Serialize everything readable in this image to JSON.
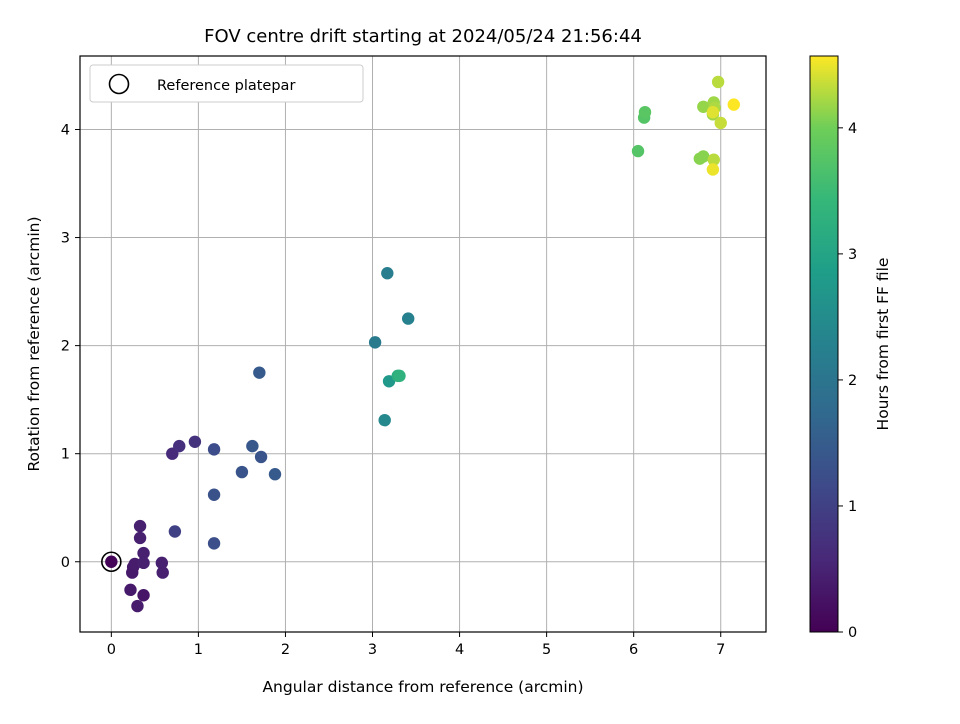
{
  "chart_data": {
    "type": "scatter",
    "title": "FOV centre drift starting at 2024/05/24 21:56:44",
    "xlabel": "Angular distance from reference (arcmin)",
    "ylabel": "Rotation from reference (arcmin)",
    "colorbar_label": "Hours from first FF file",
    "colormap": "viridis",
    "xlim": [
      -0.36,
      7.52
    ],
    "ylim": [
      -0.65,
      4.68
    ],
    "clim": [
      0,
      4.57
    ],
    "x_ticks": [
      0,
      1,
      2,
      3,
      4,
      5,
      6,
      7
    ],
    "x_tick_labels": [
      "0",
      "1",
      "2",
      "3",
      "4",
      "5",
      "6",
      "7"
    ],
    "y_ticks": [
      0,
      1,
      2,
      3,
      4
    ],
    "y_tick_labels": [
      "0",
      "1",
      "2",
      "3",
      "4"
    ],
    "colorbar_ticks": [
      0,
      1,
      2,
      3,
      4
    ],
    "colorbar_tick_labels": [
      "0",
      "1",
      "2",
      "3",
      "4"
    ],
    "grid": true,
    "legend": {
      "placement": "top-left",
      "entries": [
        "Reference platepar"
      ]
    },
    "reference": {
      "name": "Reference platepar",
      "x": 0,
      "y": 0
    },
    "points": [
      {
        "x": 0.0,
        "y": 0.0,
        "c": 0.05
      },
      {
        "x": 0.25,
        "y": -0.05,
        "c": 0.35
      },
      {
        "x": 0.24,
        "y": -0.1,
        "c": 0.35
      },
      {
        "x": 0.27,
        "y": -0.02,
        "c": 0.4
      },
      {
        "x": 0.22,
        "y": -0.26,
        "c": 0.35
      },
      {
        "x": 0.3,
        "y": -0.41,
        "c": 0.4
      },
      {
        "x": 0.37,
        "y": -0.31,
        "c": 0.3
      },
      {
        "x": 0.33,
        "y": 0.22,
        "c": 0.45
      },
      {
        "x": 0.33,
        "y": 0.33,
        "c": 0.45
      },
      {
        "x": 0.37,
        "y": 0.08,
        "c": 0.45
      },
      {
        "x": 0.37,
        "y": -0.01,
        "c": 0.45
      },
      {
        "x": 0.58,
        "y": -0.01,
        "c": 0.45
      },
      {
        "x": 0.59,
        "y": -0.1,
        "c": 0.45
      },
      {
        "x": 0.7,
        "y": 1.0,
        "c": 0.6
      },
      {
        "x": 0.78,
        "y": 1.07,
        "c": 0.7
      },
      {
        "x": 0.96,
        "y": 1.11,
        "c": 0.75
      },
      {
        "x": 0.73,
        "y": 0.28,
        "c": 1.0
      },
      {
        "x": 1.18,
        "y": 1.04,
        "c": 1.2
      },
      {
        "x": 1.18,
        "y": 0.62,
        "c": 1.3
      },
      {
        "x": 1.18,
        "y": 0.17,
        "c": 1.25
      },
      {
        "x": 1.5,
        "y": 0.83,
        "c": 1.35
      },
      {
        "x": 1.62,
        "y": 1.07,
        "c": 1.4
      },
      {
        "x": 1.72,
        "y": 0.97,
        "c": 1.35
      },
      {
        "x": 1.7,
        "y": 1.75,
        "c": 1.45
      },
      {
        "x": 1.88,
        "y": 0.81,
        "c": 1.45
      },
      {
        "x": 3.03,
        "y": 2.03,
        "c": 2.1
      },
      {
        "x": 3.17,
        "y": 2.67,
        "c": 2.2
      },
      {
        "x": 3.41,
        "y": 2.25,
        "c": 2.25
      },
      {
        "x": 3.14,
        "y": 1.31,
        "c": 2.4
      },
      {
        "x": 3.19,
        "y": 1.67,
        "c": 2.75
      },
      {
        "x": 3.29,
        "y": 1.72,
        "c": 3.2
      },
      {
        "x": 3.31,
        "y": 1.72,
        "c": 3.3
      },
      {
        "x": 6.05,
        "y": 3.8,
        "c": 3.75
      },
      {
        "x": 6.12,
        "y": 4.11,
        "c": 3.75
      },
      {
        "x": 6.13,
        "y": 4.16,
        "c": 3.8
      },
      {
        "x": 6.8,
        "y": 4.21,
        "c": 4.15
      },
      {
        "x": 6.76,
        "y": 3.73,
        "c": 4.1
      },
      {
        "x": 6.8,
        "y": 3.75,
        "c": 4.1
      },
      {
        "x": 6.91,
        "y": 4.14,
        "c": 4.2
      },
      {
        "x": 6.92,
        "y": 4.25,
        "c": 4.2
      },
      {
        "x": 6.93,
        "y": 4.2,
        "c": 4.25
      },
      {
        "x": 6.92,
        "y": 3.72,
        "c": 4.3
      },
      {
        "x": 6.97,
        "y": 4.44,
        "c": 4.3
      },
      {
        "x": 7.0,
        "y": 4.06,
        "c": 4.35
      },
      {
        "x": 6.91,
        "y": 4.16,
        "c": 4.45
      },
      {
        "x": 6.91,
        "y": 3.63,
        "c": 4.5
      },
      {
        "x": 7.15,
        "y": 4.23,
        "c": 4.57
      }
    ]
  }
}
